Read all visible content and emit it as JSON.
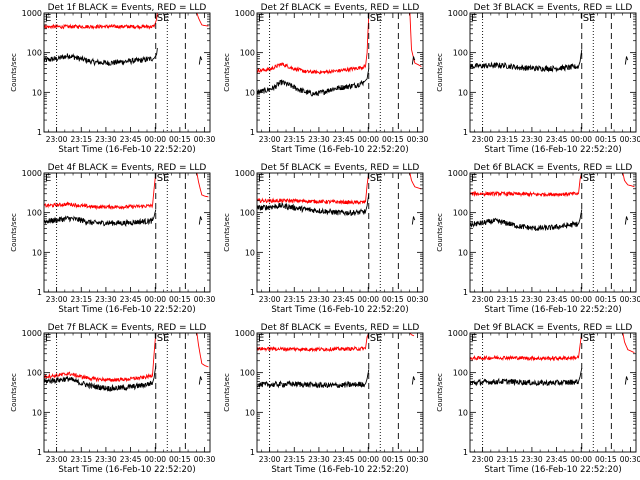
{
  "figure": {
    "panel_title_suffix": "BLACK = Events, RED = LLD",
    "ylabel": "Counts/sec",
    "xlabel": "Start Time (16-Feb-10 22:52:20)",
    "tick_labels_x": [
      "23:00",
      "23:15",
      "23:30",
      "23:45",
      "00:00",
      "00:15",
      "00:30"
    ],
    "tick_labels_y": [
      "1",
      "10",
      "100",
      "1000"
    ],
    "marker_e": "E",
    "marker_se": "SE",
    "colors": {
      "events": "#000000",
      "lld": "#ff0000",
      "axes": "#000000"
    }
  },
  "chart_data": [
    {
      "type": "line",
      "title": "Det 1f BLACK = Events, RED = LLD",
      "xlabel": "Start Time (16-Feb-10 22:52:20)",
      "ylabel": "Counts/sec",
      "x_unit": "minutes after 22:52:20",
      "xlim": [
        0,
        101
      ],
      "ylim": [
        1,
        1000
      ],
      "yscale": "log",
      "series": [
        {
          "name": "Events",
          "color": "#000000",
          "x": [
            0,
            8,
            15,
            22,
            30,
            40,
            50,
            60,
            67,
            68.5,
            69
          ],
          "y": [
            65,
            70,
            85,
            70,
            58,
            55,
            60,
            65,
            72,
            90,
            130
          ]
        },
        {
          "name": "LLD",
          "color": "#ff0000",
          "x": [
            0,
            10,
            20,
            30,
            40,
            50,
            60,
            67,
            68.5,
            69
          ],
          "y": [
            450,
            450,
            455,
            455,
            455,
            455,
            455,
            455,
            700,
            1000
          ]
        },
        {
          "name": "LLD",
          "color": "#ff0000",
          "x": [
            93,
            94,
            96,
            98,
            100
          ],
          "y": [
            1000,
            750,
            500,
            480,
            470
          ]
        },
        {
          "name": "Events",
          "color": "#000000",
          "x": [
            94.5,
            95.2,
            96
          ],
          "y": [
            50,
            80,
            65
          ]
        }
      ],
      "dotted_lines_x": [
        7.67,
        75
      ],
      "dashed_lines_x": [
        68,
        86
      ]
    },
    {
      "type": "line",
      "title": "Det 2f BLACK = Events, RED = LLD",
      "xlabel": "Start Time (16-Feb-10 22:52:20)",
      "ylabel": "Counts/sec",
      "x_unit": "minutes after 22:52:20",
      "xlim": [
        0,
        101
      ],
      "ylim": [
        1,
        1000
      ],
      "yscale": "log",
      "series": [
        {
          "name": "Events",
          "color": "#000000",
          "x": [
            0,
            5,
            10,
            15,
            20,
            25,
            30,
            35,
            40,
            45,
            50,
            55,
            60,
            65,
            67,
            68
          ],
          "y": [
            10,
            11,
            13,
            18,
            15,
            12,
            10,
            9,
            10,
            12,
            13,
            14,
            15,
            18,
            22,
            40
          ]
        },
        {
          "name": "LLD",
          "color": "#ff0000",
          "x": [
            0,
            8,
            15,
            22,
            30,
            40,
            50,
            60,
            66,
            67,
            68
          ],
          "y": [
            35,
            38,
            52,
            40,
            33,
            32,
            35,
            40,
            45,
            100,
            1000
          ]
        },
        {
          "name": "LLD",
          "color": "#ff0000",
          "x": [
            93,
            94,
            96,
            98,
            100
          ],
          "y": [
            1000,
            120,
            55,
            50,
            45
          ]
        },
        {
          "name": "Events",
          "color": "#000000",
          "x": [
            94.5,
            95.2,
            96
          ],
          "y": [
            50,
            80,
            65
          ]
        }
      ],
      "dotted_lines_x": [
        7.67,
        75
      ],
      "dashed_lines_x": [
        68,
        86
      ]
    },
    {
      "type": "line",
      "title": "Det 3f BLACK = Events, RED = LLD",
      "xlabel": "Start Time (16-Feb-10 22:52:20)",
      "ylabel": "Counts/sec",
      "x_unit": "minutes after 22:52:20",
      "xlim": [
        0,
        101
      ],
      "ylim": [
        1,
        1000
      ],
      "yscale": "log",
      "series": [
        {
          "name": "Events",
          "color": "#000000",
          "x": [
            0,
            10,
            20,
            30,
            40,
            50,
            60,
            66,
            67,
            68
          ],
          "y": [
            45,
            47,
            48,
            42,
            40,
            40,
            42,
            45,
            60,
            120
          ]
        },
        {
          "name": "Events",
          "color": "#000000",
          "x": [
            94.5,
            95.2,
            96
          ],
          "y": [
            50,
            80,
            65
          ]
        }
      ],
      "dotted_lines_x": [
        7.67,
        75
      ],
      "dashed_lines_x": [
        68,
        86
      ]
    },
    {
      "type": "line",
      "title": "Det 4f BLACK = Events, RED = LLD",
      "xlabel": "Start Time (16-Feb-10 22:52:20)",
      "ylabel": "Counts/sec",
      "x_unit": "minutes after 22:52:20",
      "xlim": [
        0,
        101
      ],
      "ylim": [
        1,
        1000
      ],
      "yscale": "log",
      "series": [
        {
          "name": "Events",
          "color": "#000000",
          "x": [
            0,
            8,
            15,
            22,
            30,
            40,
            50,
            60,
            66,
            67,
            68
          ],
          "y": [
            60,
            65,
            72,
            65,
            55,
            55,
            55,
            60,
            62,
            80,
            120
          ]
        },
        {
          "name": "LLD",
          "color": "#ff0000",
          "x": [
            0,
            8,
            15,
            22,
            30,
            40,
            50,
            60,
            66,
            67,
            68
          ],
          "y": [
            150,
            155,
            165,
            150,
            140,
            140,
            140,
            145,
            150,
            400,
            1000
          ]
        },
        {
          "name": "LLD",
          "color": "#ff0000",
          "x": [
            93,
            94,
            96,
            98,
            100
          ],
          "y": [
            1000,
            600,
            280,
            260,
            250
          ]
        },
        {
          "name": "Events",
          "color": "#000000",
          "x": [
            94.5,
            95.2,
            96
          ],
          "y": [
            50,
            80,
            65
          ]
        }
      ],
      "dotted_lines_x": [
        7.67,
        75
      ],
      "dashed_lines_x": [
        68,
        86
      ]
    },
    {
      "type": "line",
      "title": "Det 5f BLACK = Events, RED = LLD",
      "xlabel": "Start Time (16-Feb-10 22:52:20)",
      "ylabel": "Counts/sec",
      "x_unit": "minutes after 22:52:20",
      "xlim": [
        0,
        101
      ],
      "ylim": [
        1,
        1000
      ],
      "yscale": "log",
      "series": [
        {
          "name": "Events",
          "color": "#000000",
          "x": [
            0,
            8,
            15,
            22,
            30,
            40,
            50,
            60,
            66,
            67,
            68
          ],
          "y": [
            130,
            140,
            150,
            135,
            120,
            110,
            100,
            100,
            105,
            150,
            300
          ]
        },
        {
          "name": "LLD",
          "color": "#ff0000",
          "x": [
            0,
            10,
            20,
            30,
            40,
            50,
            60,
            66,
            67,
            68
          ],
          "y": [
            200,
            200,
            200,
            195,
            190,
            185,
            180,
            185,
            500,
            1000
          ]
        },
        {
          "name": "LLD",
          "color": "#ff0000",
          "x": [
            93,
            94,
            96,
            98,
            100
          ],
          "y": [
            1000,
            650,
            450,
            420,
            400
          ]
        },
        {
          "name": "Events",
          "color": "#000000",
          "x": [
            94.5,
            95.2,
            96
          ],
          "y": [
            50,
            80,
            65
          ]
        }
      ],
      "dotted_lines_x": [
        7.67,
        75
      ],
      "dashed_lines_x": [
        68,
        86
      ]
    },
    {
      "type": "line",
      "title": "Det 6f BLACK = Events, RED = LLD",
      "xlabel": "Start Time (16-Feb-10 22:52:20)",
      "ylabel": "Counts/sec",
      "x_unit": "minutes after 22:52:20",
      "xlim": [
        0,
        101
      ],
      "ylim": [
        1,
        1000
      ],
      "yscale": "log",
      "series": [
        {
          "name": "Events",
          "color": "#000000",
          "x": [
            0,
            8,
            15,
            22,
            30,
            40,
            50,
            60,
            66,
            67,
            68
          ],
          "y": [
            50,
            55,
            62,
            55,
            45,
            40,
            42,
            48,
            52,
            70,
            120
          ]
        },
        {
          "name": "LLD",
          "color": "#ff0000",
          "x": [
            0,
            10,
            20,
            30,
            40,
            50,
            60,
            66,
            67,
            68
          ],
          "y": [
            300,
            300,
            300,
            295,
            290,
            290,
            295,
            300,
            700,
            1000
          ]
        },
        {
          "name": "LLD",
          "color": "#ff0000",
          "x": [
            93,
            94,
            96,
            98,
            100
          ],
          "y": [
            1000,
            650,
            500,
            480,
            450
          ]
        },
        {
          "name": "Events",
          "color": "#000000",
          "x": [
            94.5,
            95.2,
            96
          ],
          "y": [
            50,
            80,
            65
          ]
        }
      ],
      "dotted_lines_x": [
        7.67,
        75
      ],
      "dashed_lines_x": [
        68,
        86
      ]
    },
    {
      "type": "line",
      "title": "Det 7f BLACK = Events, RED = LLD",
      "xlabel": "Start Time (16-Feb-10 22:52:20)",
      "ylabel": "Counts/sec",
      "x_unit": "minutes after 22:52:20",
      "xlim": [
        0,
        101
      ],
      "ylim": [
        1,
        1000
      ],
      "yscale": "log",
      "series": [
        {
          "name": "Events",
          "color": "#000000",
          "x": [
            0,
            8,
            15,
            22,
            30,
            40,
            50,
            60,
            66,
            67,
            68
          ],
          "y": [
            60,
            65,
            70,
            55,
            45,
            40,
            42,
            48,
            55,
            75,
            150
          ]
        },
        {
          "name": "LLD",
          "color": "#ff0000",
          "x": [
            0,
            8,
            15,
            22,
            30,
            40,
            50,
            60,
            66,
            67,
            68
          ],
          "y": [
            80,
            85,
            95,
            80,
            70,
            65,
            68,
            75,
            85,
            300,
            1000
          ]
        },
        {
          "name": "LLD",
          "color": "#ff0000",
          "x": [
            93,
            94,
            96,
            98,
            100
          ],
          "y": [
            1000,
            500,
            170,
            150,
            140
          ]
        },
        {
          "name": "Events",
          "color": "#000000",
          "x": [
            94.5,
            95.2,
            96
          ],
          "y": [
            50,
            80,
            65
          ]
        }
      ],
      "dotted_lines_x": [
        7.67,
        75
      ],
      "dashed_lines_x": [
        68,
        86
      ]
    },
    {
      "type": "line",
      "title": "Det 8f BLACK = Events, RED = LLD",
      "xlabel": "Start Time (16-Feb-10 22:52:20)",
      "ylabel": "Counts/sec",
      "x_unit": "minutes after 22:52:20",
      "xlim": [
        0,
        101
      ],
      "ylim": [
        1,
        1000
      ],
      "yscale": "log",
      "series": [
        {
          "name": "Events",
          "color": "#000000",
          "x": [
            0,
            10,
            20,
            30,
            40,
            50,
            60,
            66,
            67,
            68
          ],
          "y": [
            50,
            50,
            52,
            50,
            48,
            48,
            50,
            52,
            70,
            120
          ]
        },
        {
          "name": "LLD",
          "color": "#ff0000",
          "x": [
            0,
            10,
            20,
            30,
            40,
            50,
            60,
            66,
            67,
            68
          ],
          "y": [
            400,
            400,
            395,
            390,
            390,
            395,
            400,
            405,
            800,
            1000
          ]
        },
        {
          "name": "LLD",
          "color": "#ff0000",
          "x": [
            93,
            94,
            95.5
          ],
          "y": [
            1000,
            900,
            850
          ]
        },
        {
          "name": "Events",
          "color": "#000000",
          "x": [
            94.5,
            95.2,
            96
          ],
          "y": [
            50,
            80,
            65
          ]
        }
      ],
      "dotted_lines_x": [
        7.67,
        75
      ],
      "dashed_lines_x": [
        68,
        86
      ]
    },
    {
      "type": "line",
      "title": "Det 9f BLACK = Events, RED = LLD",
      "xlabel": "Start Time (16-Feb-10 22:52:20)",
      "ylabel": "Counts/sec",
      "x_unit": "minutes after 22:52:20",
      "xlim": [
        0,
        101
      ],
      "ylim": [
        1,
        1000
      ],
      "yscale": "log",
      "series": [
        {
          "name": "Events",
          "color": "#000000",
          "x": [
            0,
            10,
            20,
            30,
            40,
            50,
            60,
            66,
            67,
            68
          ],
          "y": [
            55,
            58,
            60,
            58,
            55,
            55,
            57,
            60,
            80,
            130
          ]
        },
        {
          "name": "LLD",
          "color": "#ff0000",
          "x": [
            0,
            10,
            20,
            30,
            40,
            50,
            60,
            66,
            67,
            68
          ],
          "y": [
            230,
            235,
            240,
            235,
            230,
            230,
            235,
            240,
            500,
            1000
          ]
        },
        {
          "name": "LLD",
          "color": "#ff0000",
          "x": [
            93,
            94,
            96,
            98,
            100
          ],
          "y": [
            1000,
            600,
            380,
            350,
            320
          ]
        },
        {
          "name": "Events",
          "color": "#000000",
          "x": [
            94.5,
            95.2,
            96
          ],
          "y": [
            50,
            80,
            65
          ]
        }
      ],
      "dotted_lines_x": [
        7.67,
        75
      ],
      "dashed_lines_x": [
        68,
        86
      ]
    }
  ]
}
